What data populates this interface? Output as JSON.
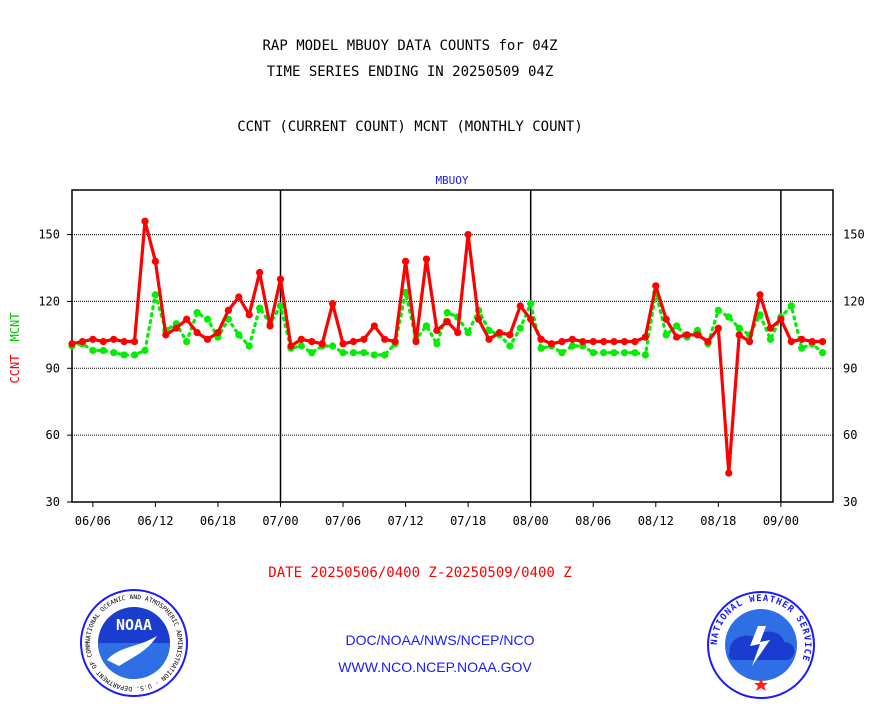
{
  "header": {
    "line1": "RAP MODEL MBUOY DATA COUNTS for 04Z",
    "line2": "TIME SERIES ENDING IN 20250509 04Z",
    "line3": "CCNT (CURRENT COUNT) MCNT (MONTHLY COUNT)"
  },
  "footer": {
    "date_range": "DATE 20250506/0400 Z-20250509/0400 Z",
    "org_path": "DOC/NOAA/NWS/NCEP/NCO",
    "website": "WWW.NCO.NCEP.NOAA.GOV"
  },
  "logos": {
    "noaa_center": "NOAA",
    "noaa_ring": "NATIONAL OCEANIC AND ATMOSPHERIC ADMINISTRATION · U.S. DEPARTMENT OF COMMERCE ·",
    "nws_ring": "NATIONAL WEATHER SERVICE"
  },
  "colors": {
    "ccnt": "#ff0000",
    "mcnt": "#00ee00",
    "title": "#1a1aff",
    "frame": "#000000"
  },
  "chart_data": {
    "type": "line",
    "title": "MBUOY",
    "ylabel_ccnt": "CCNT",
    "ylabel_mcnt": "MCNT",
    "ylim": [
      30,
      170
    ],
    "yticks": [
      30,
      60,
      90,
      120,
      150
    ],
    "grid": true,
    "xrange": [
      0,
      36.5
    ],
    "xticks": [
      {
        "x": 1,
        "label": "06/06"
      },
      {
        "x": 4,
        "label": "06/12"
      },
      {
        "x": 7,
        "label": "06/18"
      },
      {
        "x": 10,
        "label": "07/00"
      },
      {
        "x": 13,
        "label": "07/06"
      },
      {
        "x": 16,
        "label": "07/12"
      },
      {
        "x": 19,
        "label": "07/18"
      },
      {
        "x": 22,
        "label": "08/00"
      },
      {
        "x": 25,
        "label": "08/06"
      },
      {
        "x": 28,
        "label": "08/12"
      },
      {
        "x": 31,
        "label": "08/18"
      },
      {
        "x": 34,
        "label": "09/00"
      }
    ],
    "day_lines": [
      10,
      22,
      34
    ],
    "series": [
      {
        "name": "CCNT",
        "x": [
          0,
          0.5,
          1,
          1.5,
          2,
          2.5,
          3,
          3.5,
          4,
          4.5,
          5,
          5.5,
          6,
          6.5,
          7,
          7.5,
          8,
          8.5,
          9,
          9.5,
          10,
          10.5,
          11,
          11.5,
          12,
          12.5,
          13,
          13.5,
          14,
          14.5,
          15,
          15.5,
          16,
          16.5,
          17,
          17.5,
          18,
          18.5,
          19,
          19.5,
          20,
          20.5,
          21,
          21.5,
          22,
          22.5,
          23,
          23.5,
          24,
          24.5,
          25,
          25.5,
          26,
          26.5,
          27,
          27.5,
          28,
          28.5,
          29,
          29.5,
          30,
          30.5,
          31,
          31.5,
          32,
          32.5,
          33,
          33.5,
          34,
          34.5,
          35,
          35.5,
          36
        ],
        "values": [
          101,
          102,
          103,
          102,
          103,
          102,
          102,
          156,
          138,
          105,
          108,
          112,
          106,
          103,
          106,
          116,
          122,
          114,
          133,
          109,
          130,
          100,
          103,
          102,
          101,
          119,
          101,
          102,
          103,
          109,
          103,
          102,
          138,
          102,
          139,
          107,
          111,
          106,
          150,
          112,
          103,
          106,
          105,
          118,
          112,
          103,
          101,
          102,
          103,
          102,
          102,
          102,
          102,
          102,
          102,
          104,
          127,
          112,
          104,
          105,
          105,
          102,
          108,
          43,
          105,
          102,
          123,
          108,
          112,
          102,
          103,
          102,
          102
        ]
      },
      {
        "name": "MCNT",
        "x": [
          0,
          0.5,
          1,
          1.5,
          2,
          2.5,
          3,
          3.5,
          4,
          4.5,
          5,
          5.5,
          6,
          6.5,
          7,
          7.5,
          8,
          8.5,
          9,
          9.5,
          10,
          10.5,
          11,
          11.5,
          12,
          12.5,
          13,
          13.5,
          14,
          14.5,
          15,
          15.5,
          16,
          16.5,
          17,
          17.5,
          18,
          18.5,
          19,
          19.5,
          20,
          20.5,
          21,
          21.5,
          22,
          22.5,
          23,
          23.5,
          24,
          24.5,
          25,
          25.5,
          26,
          26.5,
          27,
          27.5,
          28,
          28.5,
          29,
          29.5,
          30,
          30.5,
          31,
          31.5,
          32,
          32.5,
          33,
          33.5,
          34,
          34.5,
          35,
          35.5,
          36
        ],
        "values": [
          100,
          101,
          98,
          98,
          97,
          96,
          96,
          98,
          123,
          107,
          110,
          102,
          115,
          112,
          104,
          112,
          105,
          100,
          117,
          110,
          118,
          99,
          100,
          97,
          100,
          100,
          97,
          97,
          97,
          96,
          96,
          101,
          124,
          103,
          109,
          101,
          115,
          113,
          106,
          116,
          107,
          105,
          100,
          108,
          119,
          99,
          100,
          97,
          100,
          100,
          97,
          97,
          97,
          97,
          97,
          96,
          124,
          105,
          109,
          104,
          107,
          101,
          116,
          113,
          108,
          105,
          114,
          103,
          113,
          118,
          99,
          101,
          97
        ]
      }
    ]
  }
}
